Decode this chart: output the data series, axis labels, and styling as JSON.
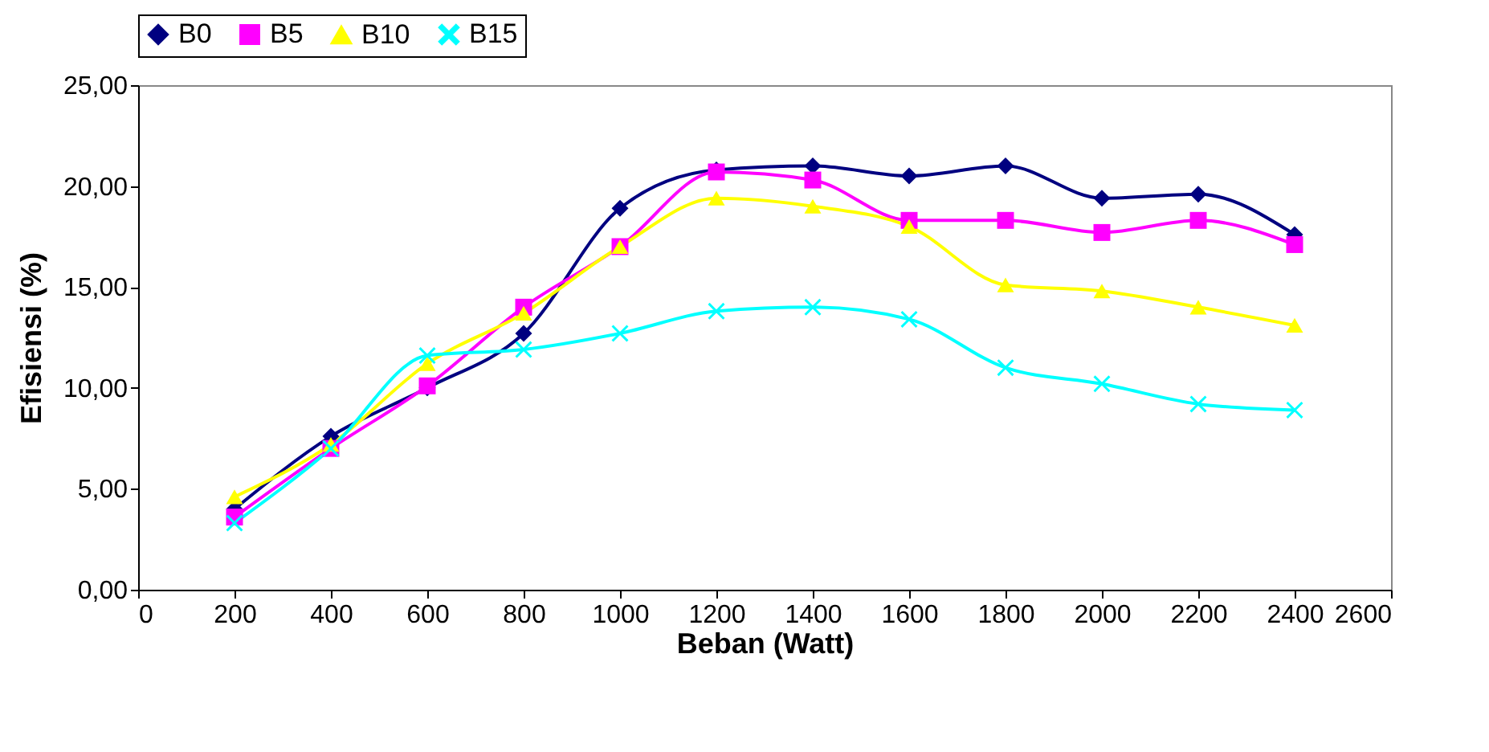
{
  "chart_data": {
    "type": "line",
    "xlabel": "Beban (Watt)",
    "ylabel": "Efisiensi (%)",
    "x": [
      200,
      400,
      600,
      800,
      1000,
      1200,
      1400,
      1600,
      1800,
      2000,
      2200,
      2400
    ],
    "series": [
      {
        "name": "B0",
        "color": "#000080",
        "marker": "diamond",
        "values": [
          4.0,
          7.6,
          10.0,
          12.7,
          18.9,
          20.8,
          21.0,
          20.5,
          21.0,
          19.4,
          19.6,
          17.6
        ]
      },
      {
        "name": "B5",
        "color": "#ff00ff",
        "marker": "square",
        "values": [
          3.6,
          7.0,
          10.1,
          14.0,
          17.0,
          20.7,
          20.3,
          18.3,
          18.3,
          17.7,
          18.3,
          17.1
        ]
      },
      {
        "name": "B10",
        "color": "#ffff00",
        "marker": "triangle",
        "values": [
          4.6,
          7.2,
          11.2,
          13.7,
          17.0,
          19.4,
          19.0,
          18.0,
          15.1,
          14.8,
          14.0,
          13.1
        ]
      },
      {
        "name": "B15",
        "color": "#00ffff",
        "marker": "cross",
        "values": [
          3.3,
          7.0,
          11.6,
          11.9,
          12.7,
          13.8,
          14.0,
          13.4,
          11.0,
          10.2,
          9.2,
          8.9
        ]
      }
    ],
    "xlim": [
      0,
      2600
    ],
    "xticks": [
      0,
      200,
      400,
      600,
      800,
      1000,
      1200,
      1400,
      1600,
      1800,
      2000,
      2200,
      2400,
      2600
    ],
    "ylim": [
      0,
      25
    ],
    "yticks": [
      {
        "value": 0,
        "label": "0,00"
      },
      {
        "value": 5,
        "label": "5,00"
      },
      {
        "value": 10,
        "label": "10,00"
      },
      {
        "value": 15,
        "label": "15,00"
      },
      {
        "value": 20,
        "label": "20,00"
      },
      {
        "value": 25,
        "label": "25,00"
      }
    ],
    "legend": "top",
    "grid": false
  }
}
